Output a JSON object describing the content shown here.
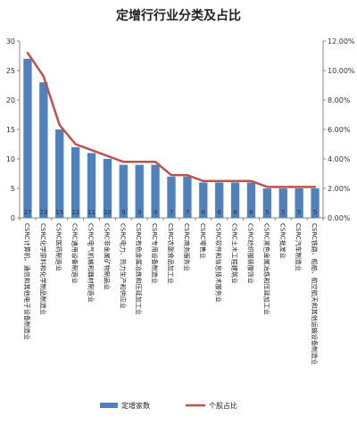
{
  "chart_data": {
    "type": "bar",
    "title": "定增行行业分类及占比",
    "categories": [
      "CSRC计算机、通信和其他电子设备制造业",
      "CSRC化学原料和化学制品制造业",
      "CSRC医药制造业",
      "CSRC通用设备制造业",
      "CSRC电气机械和器材制造业",
      "CSRC非金属矿物制品业",
      "CSRC电力、热力生产和供应业",
      "CSRC有色金属冶炼和压延加工业",
      "CSRC专用设备制造业",
      "CSRC农副食品加工业",
      "CSRC商务服务业",
      "CSRC零售业",
      "CSRC软件和信息技术服务业",
      "CSRC土木工程建筑业",
      "CSRC纺织服装服饰业",
      "CSRC黑色金属冶炼和压延加工业",
      "CSRC批发业",
      "CSRC汽车制造业",
      "CSRC铁路、船舶、航空航天和其他运输设备制造业"
    ],
    "series": [
      {
        "name": "定增家数",
        "type": "bar",
        "color": "#4f81bd",
        "axis": "left",
        "values": [
          27,
          23,
          15,
          12,
          11,
          10,
          9,
          9,
          9,
          7,
          7,
          6,
          6,
          6,
          6,
          5,
          5,
          5,
          5
        ]
      },
      {
        "name": "个股占比",
        "type": "line",
        "color": "#c0504d",
        "axis": "right",
        "values": [
          11.2,
          9.6,
          6.3,
          5.0,
          4.6,
          4.2,
          3.8,
          3.8,
          3.8,
          2.9,
          2.9,
          2.5,
          2.5,
          2.5,
          2.5,
          2.1,
          2.1,
          2.1,
          2.1
        ]
      }
    ],
    "y_left": {
      "min": 0,
      "max": 30,
      "ticks": [
        "0",
        "5",
        "10",
        "15",
        "20",
        "25",
        "30"
      ]
    },
    "y_right": {
      "min": 0,
      "max": 12,
      "ticks": [
        "0.00%",
        "2.00%",
        "4.00%",
        "6.00%",
        "8.00%",
        "10.00%",
        "12.00%"
      ]
    },
    "grid": false,
    "legend_position": "bottom",
    "data_labels": true
  }
}
